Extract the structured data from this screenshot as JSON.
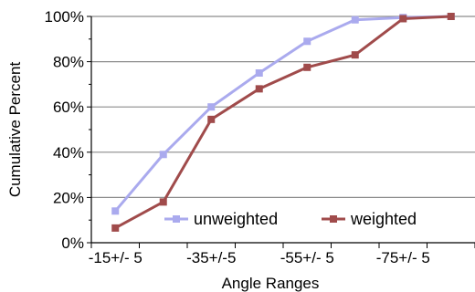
{
  "chart_data": {
    "type": "line",
    "title": "",
    "xlabel": "Angle Ranges",
    "ylabel": "Cumulative Percent",
    "categories": [
      "-15+/- 5",
      "",
      "-35+/-5",
      "",
      "-55+/- 5",
      "",
      "-75+/- 5",
      ""
    ],
    "x_tick_labels": [
      "-15+/- 5",
      "-35+/-5",
      "-55+/- 5",
      "-75+/- 5"
    ],
    "y_tick_labels": [
      "0%",
      "20%",
      "40%",
      "60%",
      "80%",
      "100%"
    ],
    "ylim": [
      0,
      100
    ],
    "y_unit": "%",
    "grid": "horizontal",
    "legend_position": "bottom-right",
    "series": [
      {
        "name": "unweighted",
        "values": [
          14,
          39,
          60,
          75,
          89,
          98.5,
          99.5,
          100
        ],
        "color": "#aaaaee",
        "marker": "square"
      },
      {
        "name": "weighted",
        "values": [
          6.5,
          18,
          54.5,
          68,
          77.5,
          83,
          99,
          100
        ],
        "color": "#a04b4b",
        "marker": "square"
      }
    ]
  }
}
